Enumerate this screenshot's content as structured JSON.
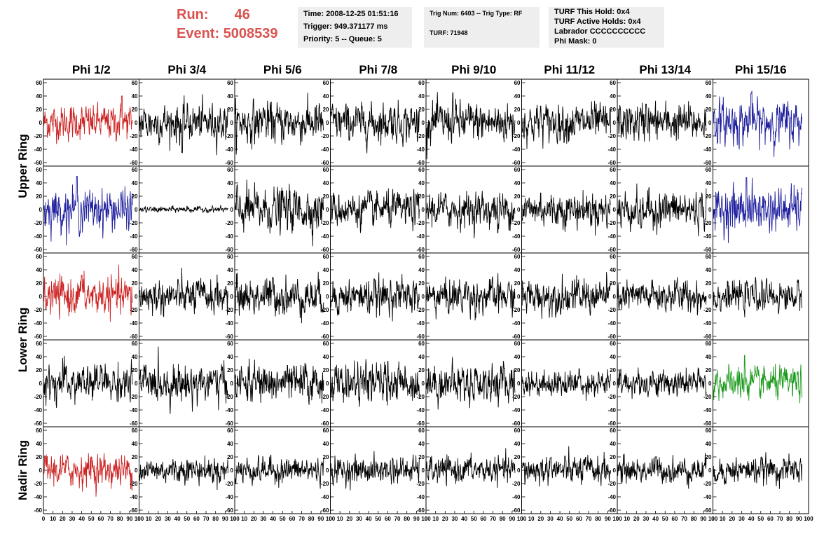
{
  "header": {
    "run_label": "Run:",
    "run_value": "46",
    "event_label": "Event:",
    "event_value": "5008539",
    "time_line": "Time: 2008-12-25 01:51:16",
    "trigger_line": "Trigger: 949.371177 ms",
    "priority_line": "Priority: 5 -- Queue: 5",
    "trig_num_line": "Trig Num: 6403 -- Trig Type: RF",
    "turf_line": "TURF: 71948",
    "turf_hold_line": "TURF This Hold: 0x4",
    "turf_active_line": "TURF Active Holds: 0x4",
    "labrador_line": "Labrador CCCCCCCCCC",
    "phi_mask_line": "Phi Mask: 0"
  },
  "colors": {
    "header_red": "#d9534f",
    "info_bg": "#eeeeee",
    "trace_black": "#000000",
    "trace_red": "#cc2222",
    "trace_blue": "#1f1f9e",
    "trace_green": "#1a9a1a"
  },
  "chart_data": {
    "type": "line",
    "layout": "waveform grid",
    "columns": [
      "Phi 1/2",
      "Phi 3/4",
      "Phi 5/6",
      "Phi 7/8",
      "Phi 9/10",
      "Phi 11/12",
      "Phi 13/14",
      "Phi 15/16"
    ],
    "row_groups": [
      {
        "label": "Upper Ring",
        "rows": 2
      },
      {
        "label": "Lower Ring",
        "rows": 2
      },
      {
        "label": "Nadir Ring",
        "rows": 1
      }
    ],
    "xlim": [
      0,
      100
    ],
    "ylim": [
      -60,
      60
    ],
    "x_ticks": [
      0,
      10,
      20,
      30,
      40,
      50,
      60,
      70,
      80,
      90,
      100
    ],
    "x_tick_labels": [
      "0",
      "10",
      "20",
      "30",
      "40",
      "50",
      "60",
      "70",
      "80",
      "90",
      "100"
    ],
    "y_ticks": [
      -60,
      -40,
      -20,
      0,
      20,
      40,
      60
    ],
    "y_tick_labels": [
      "-60",
      "-40",
      "-20",
      "0",
      "20",
      "40",
      "60"
    ],
    "panel_colors": [
      [
        "red",
        "black",
        "black",
        "black",
        "black",
        "black",
        "black",
        "blue"
      ],
      [
        "blue",
        "black",
        "black",
        "black",
        "black",
        "black",
        "black",
        "blue"
      ],
      [
        "red",
        "black",
        "black",
        "black",
        "black",
        "black",
        "black",
        "black"
      ],
      [
        "black",
        "black",
        "black",
        "black",
        "black",
        "black",
        "black",
        "green"
      ],
      [
        "red",
        "black",
        "black",
        "black",
        "black",
        "black",
        "black",
        "black"
      ]
    ],
    "trace_amplitude": [
      [
        12,
        13,
        14,
        13,
        14,
        13,
        13,
        15
      ],
      [
        14,
        2,
        15,
        12,
        12,
        12,
        13,
        15
      ],
      [
        13,
        12,
        13,
        12,
        12,
        12,
        11,
        10
      ],
      [
        13,
        13,
        13,
        13,
        13,
        9,
        9,
        11
      ],
      [
        11,
        9,
        9,
        9,
        9,
        10,
        9,
        9
      ]
    ],
    "trace_peaks": [
      [
        [
          82,
          40
        ],
        [
          45,
          -45
        ],
        [
          30,
          22
        ],
        [
          63,
          22
        ],
        [
          28,
          45
        ],
        [
          20,
          25
        ],
        [
          30,
          28
        ],
        [
          40,
          44
        ]
      ],
      [
        [
          35,
          50
        ],
        [
          50,
          5
        ],
        [
          50,
          28
        ],
        [
          40,
          25
        ],
        [
          75,
          -35
        ],
        [
          20,
          25
        ],
        [
          25,
          -28
        ],
        [
          35,
          48
        ]
      ],
      [
        [
          40,
          32
        ],
        [
          60,
          22
        ],
        [
          40,
          28
        ],
        [
          63,
          24
        ],
        [
          42,
          22
        ],
        [
          53,
          23
        ],
        [
          60,
          24
        ],
        [
          40,
          15
        ]
      ],
      [
        [
          60,
          26
        ],
        [
          65,
          22
        ],
        [
          55,
          27
        ],
        [
          60,
          33
        ],
        [
          52,
          22
        ],
        [
          60,
          22
        ],
        [
          37,
          18
        ],
        [
          33,
          42
        ]
      ],
      [
        [
          50,
          20
        ],
        [
          50,
          15
        ],
        [
          25,
          22
        ],
        [
          65,
          18
        ],
        [
          45,
          15
        ],
        [
          30,
          18
        ],
        [
          40,
          20
        ],
        [
          60,
          16
        ]
      ]
    ]
  }
}
